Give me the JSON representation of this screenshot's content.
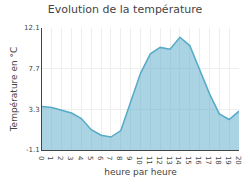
{
  "chart_data": {
    "type": "area",
    "title": "Evolution de la température",
    "xlabel": "heure par heure",
    "ylabel": "Température en °C",
    "x": [
      0,
      1,
      2,
      3,
      4,
      5,
      6,
      7,
      8,
      9,
      10,
      11,
      12,
      13,
      14,
      15,
      16,
      17,
      18,
      19,
      20
    ],
    "values": [
      3.6,
      3.5,
      3.2,
      2.9,
      2.3,
      1.1,
      0.5,
      0.3,
      1.0,
      4.2,
      7.2,
      9.3,
      10.0,
      9.8,
      11.1,
      10.2,
      7.5,
      5.0,
      2.8,
      2.2,
      3.1
    ],
    "color": "#55aac8",
    "xlim": [
      0,
      20
    ],
    "xticks": [
      0,
      1,
      2,
      3,
      4,
      5,
      6,
      7,
      8,
      9,
      10,
      11,
      12,
      13,
      14,
      15,
      16,
      17,
      18,
      19,
      20
    ],
    "ylim": [
      -1.1,
      12.1
    ],
    "yticks": [
      -1.1,
      3.3,
      7.7,
      12.1
    ],
    "grid": true
  }
}
